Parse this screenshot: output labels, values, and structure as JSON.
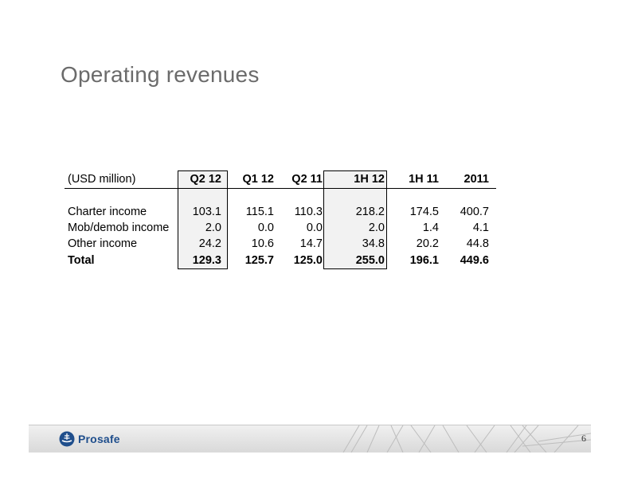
{
  "title": "Operating revenues",
  "table": {
    "corner_label": "(USD million)",
    "columns": [
      "Q2 12",
      "Q1 12",
      "Q2 11",
      "1H 12",
      "1H 11",
      "2011"
    ],
    "rows": [
      {
        "label": "Charter income",
        "values": [
          "103.1",
          "115.1",
          "110.3",
          "218.2",
          "174.5",
          "400.7"
        ]
      },
      {
        "label": "Mob/demob income",
        "values": [
          "2.0",
          "0.0",
          "0.0",
          "2.0",
          "1.4",
          "4.1"
        ]
      },
      {
        "label": "Other income",
        "values": [
          "24.2",
          "10.6",
          "14.7",
          "34.8",
          "20.2",
          "44.8"
        ]
      },
      {
        "label": "Total",
        "values": [
          "129.3",
          "125.7",
          "125.0",
          "255.0",
          "196.1",
          "449.6"
        ]
      }
    ],
    "highlighted_columns": [
      "Q2 12",
      "1H 12"
    ]
  },
  "footer": {
    "brand": "Prosafe",
    "page_number": "6",
    "brand_color": "#1f4e8c"
  }
}
